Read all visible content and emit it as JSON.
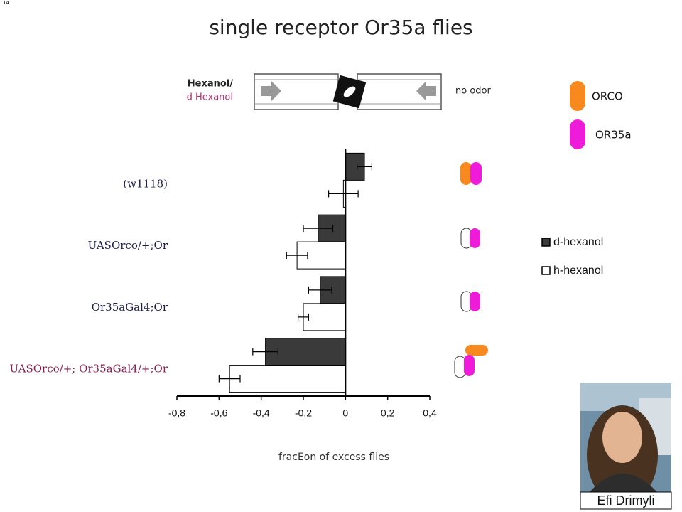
{
  "slide_number": "14",
  "stimulus": {
    "left_top": "Hexanol/",
    "left_bottom": "d Hexanol",
    "right": "no odor"
  },
  "receptor_key": {
    "orco": "ORCO",
    "or35a": "OR35a"
  },
  "presenter": "Efi Drimyli",
  "chart_data": {
    "type": "barh",
    "title": "single receptor Or35a flies",
    "x_label": "fracEon of excess flies",
    "categories": [
      "(w1118)",
      "UASOrco/+;Or",
      "Or35aGal4;Or",
      "UASOrco/+; Or35aGal4/+;Or"
    ],
    "series": [
      {
        "name": "d-hexanol",
        "color": "#3a3a3a",
        "values": [
          0.09,
          -0.13,
          -0.12,
          -0.38
        ],
        "errors": [
          0.035,
          0.07,
          0.055,
          0.06
        ]
      },
      {
        "name": "h-hexanol",
        "color": "#ffffff",
        "values": [
          -0.01,
          -0.23,
          -0.2,
          -0.55
        ],
        "errors": [
          0.07,
          0.05,
          0.025,
          0.05
        ]
      }
    ],
    "xlim": [
      -0.8,
      0.4
    ],
    "xticks": [
      {
        "value": -0.8,
        "label": "-0,8"
      },
      {
        "value": -0.6,
        "label": "-0,6"
      },
      {
        "value": -0.4,
        "label": "-0,4"
      },
      {
        "value": -0.2,
        "label": "-0,2"
      },
      0,
      {
        "value": 0.2,
        "label": "0,2"
      },
      {
        "value": 0.4,
        "label": "0,4"
      }
    ],
    "legend": "right"
  }
}
